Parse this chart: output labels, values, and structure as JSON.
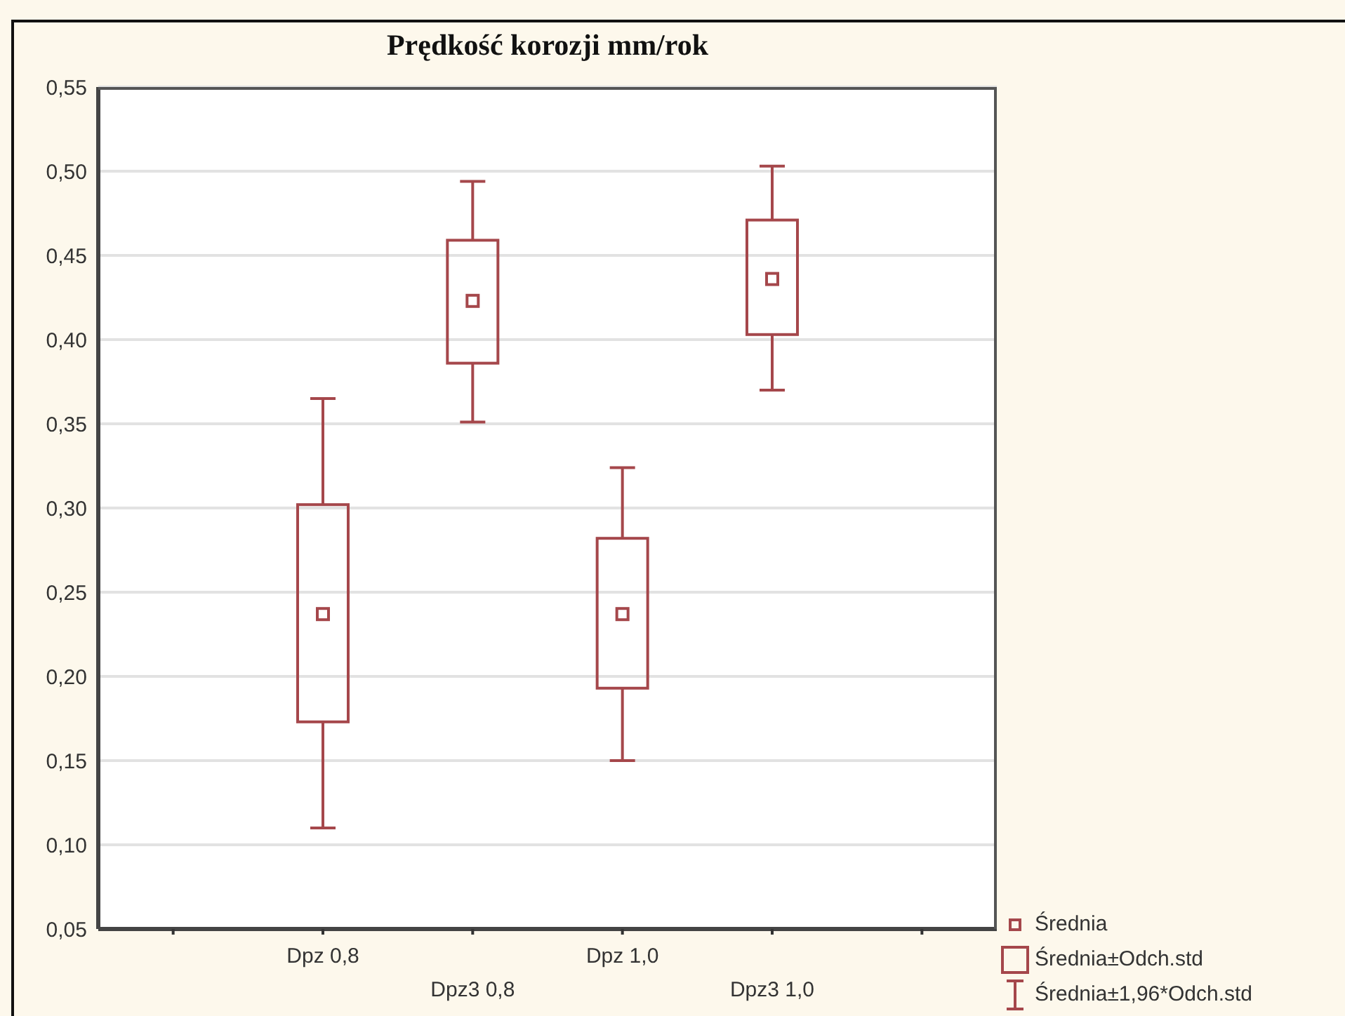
{
  "chart_data": {
    "type": "box",
    "title": "Prędkość korozji mm/rok",
    "categories": [
      null,
      "Dpz 0,8",
      "Dpz3 0,8",
      "Dpz 1,0",
      "Dpz3 1,0",
      null
    ],
    "boxes": [
      null,
      {
        "low": 0.11,
        "q1": 0.173,
        "median": 0.237,
        "q3": 0.302,
        "high": 0.365
      },
      {
        "low": 0.351,
        "q1": 0.386,
        "median": 0.423,
        "q3": 0.459,
        "high": 0.494
      },
      {
        "low": 0.15,
        "q1": 0.193,
        "median": 0.237,
        "q3": 0.282,
        "high": 0.324
      },
      {
        "low": 0.37,
        "q1": 0.403,
        "median": 0.436,
        "q3": 0.471,
        "high": 0.503
      },
      null
    ],
    "color": "#a5474b",
    "ylim": [
      0.05,
      0.55
    ],
    "yticks": [
      {
        "value": 0.05,
        "label": "0,05"
      },
      {
        "value": 0.1,
        "label": "0,10"
      },
      {
        "value": 0.15,
        "label": "0,15"
      },
      {
        "value": 0.2,
        "label": "0,20"
      },
      {
        "value": 0.25,
        "label": "0,25"
      },
      {
        "value": 0.3,
        "label": "0,30"
      },
      {
        "value": 0.35,
        "label": "0,35"
      },
      {
        "value": 0.4,
        "label": "0,40"
      },
      {
        "value": 0.45,
        "label": "0,45"
      },
      {
        "value": 0.5,
        "label": "0,50"
      },
      {
        "value": 0.55,
        "label": "0,55"
      }
    ],
    "grid": "y",
    "marker": "square",
    "annotations": [
      "Średnia",
      "Średnia±Odch.std",
      "Średnia±1,96*Odch.std"
    ]
  }
}
